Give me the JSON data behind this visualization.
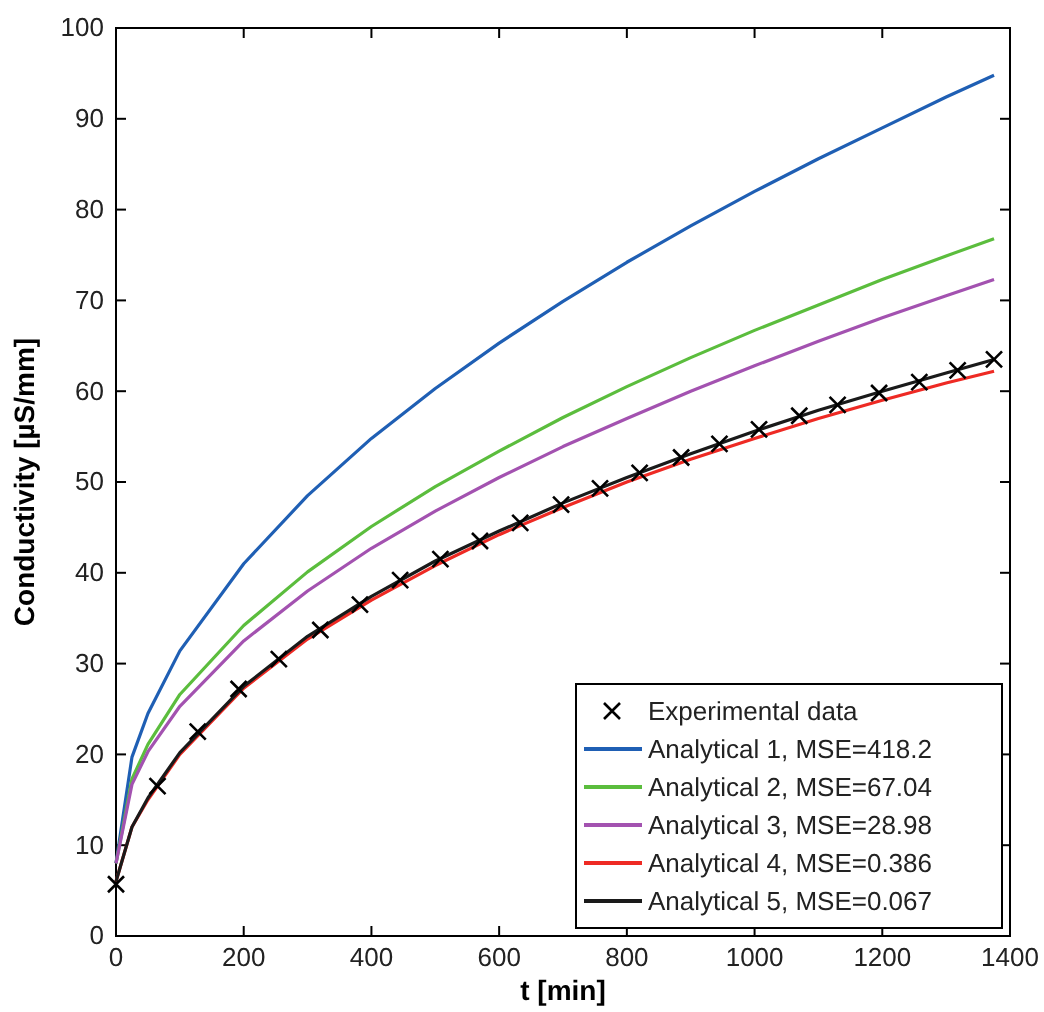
{
  "chart_data": {
    "type": "line",
    "xlabel": "t  [min]",
    "ylabel": "Conductivity [µS/mm]",
    "xlim": [
      0,
      1400
    ],
    "ylim": [
      0,
      100
    ],
    "xticks": [
      0,
      200,
      400,
      600,
      800,
      1000,
      1200,
      1400
    ],
    "yticks": [
      0,
      10,
      20,
      30,
      40,
      50,
      60,
      70,
      80,
      90,
      100
    ],
    "grid": false,
    "legend": "bottom right",
    "x": [
      0,
      25,
      50,
      100,
      200,
      300,
      400,
      500,
      600,
      700,
      800,
      900,
      1000,
      1100,
      1200,
      1300,
      1375
    ],
    "series": [
      {
        "name": "Experimental data",
        "type": "scatter",
        "marker": "cross",
        "color": "#000000",
        "x": [
          0,
          65,
          128,
          192,
          255,
          320,
          382,
          445,
          508,
          570,
          633,
          697,
          758,
          820,
          885,
          945,
          1007,
          1070,
          1130,
          1195,
          1258,
          1318,
          1375
        ],
        "values": [
          5.7,
          16.5,
          22.5,
          27.2,
          30.5,
          33.7,
          36.5,
          39.2,
          41.5,
          43.5,
          45.5,
          47.5,
          49.3,
          51,
          52.7,
          54.2,
          55.8,
          57.3,
          58.5,
          59.8,
          61,
          62.3,
          63.5
        ]
      },
      {
        "name": "Analytical 1, MSE=418.2",
        "color": "#1f5fb4",
        "values": [
          8,
          19.7,
          24.5,
          31.4,
          41,
          48.5,
          54.8,
          60.3,
          65.3,
          69.9,
          74.2,
          78.2,
          82,
          85.6,
          89,
          92.4,
          94.8
        ]
      },
      {
        "name": "Analytical 2, MSE=67.04",
        "color": "#5bbd3d",
        "values": [
          8,
          17.3,
          21.1,
          26.6,
          34.2,
          40.1,
          45.1,
          49.5,
          53.4,
          57.1,
          60.5,
          63.7,
          66.7,
          69.5,
          72.3,
          74.9,
          76.8
        ]
      },
      {
        "name": "Analytical 3, MSE=28.98",
        "color": "#a352b0",
        "values": [
          8,
          16.7,
          20.3,
          25.3,
          32.5,
          38,
          42.7,
          46.8,
          50.5,
          53.9,
          57,
          60,
          62.8,
          65.5,
          68.1,
          70.5,
          72.3
        ]
      },
      {
        "name": "Analytical 4, MSE=0.386",
        "color": "#ee2a24",
        "values": [
          6,
          12,
          15,
          20,
          27.3,
          32.7,
          37,
          40.8,
          44.2,
          47.2,
          50,
          52.5,
          54.8,
          57,
          59,
          60.9,
          62.2
        ]
      },
      {
        "name": "Analytical 5, MSE=0.067",
        "color": "#1a1a1a",
        "values": [
          6,
          12,
          15.2,
          20.2,
          27.5,
          33,
          37.4,
          41.3,
          44.6,
          47.7,
          50.5,
          53.1,
          55.6,
          57.9,
          60,
          62,
          63.5
        ]
      }
    ]
  }
}
